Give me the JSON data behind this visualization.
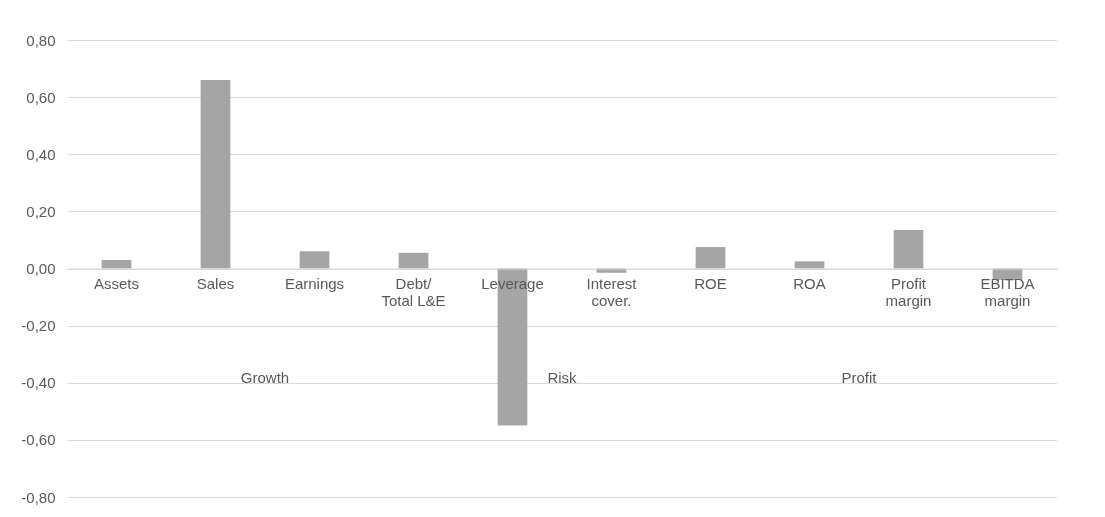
{
  "chart_data": {
    "type": "bar",
    "categories": [
      "Assets",
      "Sales",
      "Earnings",
      "Debt/ Total L&E",
      "Leverage",
      "Interest cover.",
      "ROE",
      "ROA",
      "Profit margin",
      "EBITDA margin"
    ],
    "values": [
      0.03,
      0.66,
      0.06,
      0.055,
      -0.55,
      -0.015,
      0.075,
      0.025,
      0.135,
      -0.04
    ],
    "color": "#a5a5a5",
    "ylim": [
      -0.8,
      0.8
    ],
    "yticks": [
      {
        "value": -0.8,
        "label": "-0,80"
      },
      {
        "value": -0.6,
        "label": "-0,60"
      },
      {
        "value": -0.4,
        "label": "-0,40"
      },
      {
        "value": -0.2,
        "label": "-0,20"
      },
      {
        "value": 0,
        "label": "0,00"
      },
      {
        "value": 0.2,
        "label": "0,20"
      },
      {
        "value": 0.4,
        "label": "0,40"
      },
      {
        "value": 0.6,
        "label": "0,60"
      },
      {
        "value": 0.8,
        "label": "0,80"
      }
    ],
    "grid": "y",
    "annotations": [
      "Growth",
      "Risk",
      "Profit"
    ]
  }
}
